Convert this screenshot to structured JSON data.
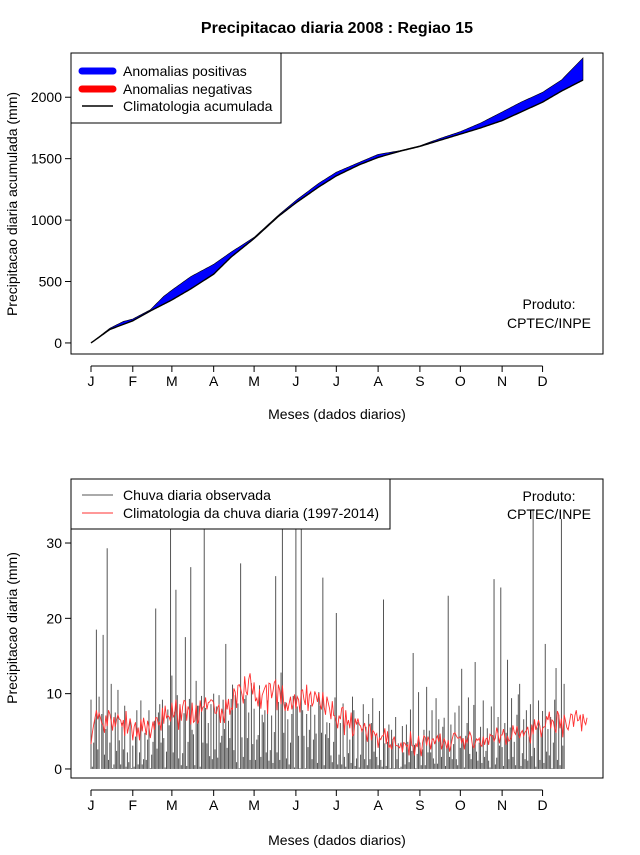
{
  "chart_data": [
    {
      "type": "area",
      "title": "Precipitacao diaria 2008 : Regiao 15",
      "xlabel": "Meses (dados diarios)",
      "ylabel": "Precipitacao diaria acumulada (mm)",
      "x_ticks": [
        "J",
        "F",
        "M",
        "A",
        "M",
        "J",
        "J",
        "A",
        "S",
        "O",
        "N",
        "D"
      ],
      "x_tick_days": [
        1,
        32,
        61,
        92,
        122,
        153,
        183,
        214,
        245,
        275,
        306,
        336
      ],
      "xlim": [
        1,
        366
      ],
      "y_ticks": [
        0,
        500,
        1000,
        1500,
        2000
      ],
      "ylim": [
        -90,
        2360
      ],
      "legend_position": "top-left",
      "legend": [
        {
          "label": "Anomalias positivas",
          "color": "#0000ff"
        },
        {
          "label": "Anomalias negativas",
          "color": "#ff0000"
        },
        {
          "label": "Climatologia acumulada",
          "color": "#000000"
        }
      ],
      "note_line1": "Produto:",
      "note_line2": "CPTEC/INPE",
      "climatology_cumulative": {
        "days": [
          1,
          15,
          32,
          45,
          61,
          75,
          92,
          105,
          122,
          140,
          153,
          170,
          183,
          200,
          214,
          230,
          245,
          260,
          275,
          290,
          306,
          320,
          336,
          350,
          366
        ],
        "values": [
          0,
          110,
          180,
          260,
          350,
          440,
          560,
          700,
          850,
          1030,
          1140,
          1270,
          1360,
          1450,
          1510,
          1560,
          1600,
          1650,
          1700,
          1750,
          1810,
          1880,
          1960,
          2050,
          2140
        ]
      },
      "observed_cumulative": {
        "days": [
          1,
          15,
          25,
          32,
          45,
          55,
          61,
          75,
          92,
          105,
          122,
          140,
          153,
          170,
          183,
          200,
          214,
          230,
          245,
          260,
          275,
          290,
          306,
          320,
          336,
          350,
          366
        ],
        "values": [
          0,
          120,
          175,
          195,
          270,
          380,
          430,
          540,
          640,
          740,
          860,
          1040,
          1160,
          1300,
          1390,
          1470,
          1535,
          1565,
          1605,
          1665,
          1720,
          1790,
          1880,
          1960,
          2040,
          2140,
          2320
        ]
      }
    },
    {
      "type": "line",
      "title": "",
      "xlabel": "Meses (dados diarios)",
      "ylabel": "Precipitacao diaria (mm)",
      "x_ticks": [
        "J",
        "F",
        "M",
        "A",
        "M",
        "J",
        "J",
        "A",
        "S",
        "O",
        "N",
        "D"
      ],
      "x_tick_days": [
        1,
        32,
        61,
        92,
        122,
        153,
        183,
        214,
        245,
        275,
        306,
        336
      ],
      "xlim": [
        1,
        366
      ],
      "y_ticks": [
        0,
        10,
        20,
        30
      ],
      "ylim": [
        -1.2,
        38.5
      ],
      "legend_position": "top-left",
      "legend": [
        {
          "label": "Chuva diaria observada",
          "color": "#555555"
        },
        {
          "label": "Climatologia da chuva diaria (1997-2014)",
          "color": "#ff3030"
        }
      ],
      "note_line1": "Produto:",
      "note_line2": "CPTEC/INPE",
      "series": [
        {
          "name": "Chuva diaria observada",
          "color": "#555555",
          "values": [
            9.2,
            0.3,
            3.5,
            6.8,
            18.5,
            2.6,
            9.6,
            0,
            7.3,
            17.8,
            1.9,
            5.3,
            29.3,
            1.2,
            3.5,
            11.3,
            0.1,
            0.6,
            7.5,
            2.4,
            10.5,
            3.8,
            0.6,
            6.1,
            2.6,
            8.4,
            0.3,
            2.2,
            0.9,
            6.5,
            0.1,
            3.1,
            0.3,
            4.3,
            7.8,
            0.6,
            2.2,
            9.1,
            0.6,
            1.3,
            4.8,
            1.2,
            3.9,
            7.8,
            0.1,
            1.9,
            3.6,
            6.4,
            21.3,
            2.7,
            7.5,
            8.6,
            3.5,
            9.2,
            4.1,
            0.2,
            2.3,
            7.9,
            5.8,
            33.0,
            12.4,
            2.2,
            7.6,
            23.8,
            9.8,
            1.4,
            8.1,
            0.5,
            2.1,
            7.4,
            17.5,
            0.4,
            3.6,
            9.3,
            26.8,
            5.2,
            4.6,
            0.5,
            11.7,
            8.4,
            8.4,
            0.3,
            9.7,
            3.5,
            33.0,
            8.1,
            3.4,
            6.1,
            1.7,
            8.6,
            1.3,
            10.0,
            2.6,
            8.3,
            1.5,
            9.8,
            3.5,
            4.4,
            9.2,
            5.3,
            16.6,
            2.8,
            6.4,
            4.1,
            9.3,
            11.2,
            2.5,
            9.8,
            0.9,
            8.7,
            0.1,
            27.3,
            4.2,
            1.6,
            9.3,
            9.8,
            4.1,
            7.5,
            1.2,
            11.4,
            3.3,
            8.0,
            1.2,
            3.9,
            4.5,
            11.1,
            1.6,
            7.2,
            6.2,
            7.8,
            2.2,
            9.1,
            1.1,
            2.5,
            7.1,
            0.8,
            4.9,
            25.6,
            2.2,
            8.9,
            1.2,
            12.8,
            33.0,
            4.8,
            8.9,
            1.4,
            6.6,
            0.6,
            3.5,
            7.3,
            9.7,
            0.2,
            33.0,
            8.3,
            4.4,
            0.1,
            33.0,
            7.8,
            4.4,
            0.1,
            7.3,
            2.9,
            5.2,
            8.5,
            1.3,
            3.9,
            7.2,
            4.7,
            0.8,
            10.2,
            8.4,
            4.8,
            25.4,
            0.5,
            4.6,
            6.2,
            4.1,
            6.1,
            1.8,
            0.9,
            3.6,
            9.5,
            20.7,
            0.6,
            1.9,
            6.1,
            0.6,
            8.7,
            1.6,
            0.3,
            6.1,
            2.1,
            3.9,
            0.8,
            9.6,
            7.8,
            0.4,
            1.4,
            6.2,
            0.2,
            1.9,
            5.3,
            8.6,
            1.3,
            5.6,
            0.5,
            7.3,
            1.3,
            6.1,
            9.4,
            2.3,
            4.5,
            1.6,
            0.5,
            7.7,
            1.2,
            0.3,
            22.5,
            3.4,
            0.4,
            3.6,
            5.9,
            0.1,
            5.2,
            4.0,
            0.1,
            6.9,
            1.3,
            3.4,
            0.1,
            0.3,
            5.7,
            2.2,
            0.6,
            5.9,
            3.6,
            0.9,
            7.9,
            2.4,
            15.4,
            3.2,
            0.1,
            2.0,
            10.2,
            3.5,
            0.5,
            2.6,
            5.2,
            0.5,
            10.9,
            2.2,
            5.1,
            2.2,
            7.8,
            1.4,
            0.7,
            9.4,
            0.7,
            6.6,
            4.3,
            1.6,
            5.6,
            6.8,
            0.4,
            2.9,
            23.0,
            1.6,
            5.9,
            1.3,
            3.3,
            7.5,
            1.3,
            0.5,
            8.4,
            2.8,
            13.3,
            3.8,
            0.2,
            4.4,
            6.1,
            9.5,
            2.0,
            1.3,
            3.1,
            8.5,
            14.2,
            2.3,
            1.1,
            3.5,
            5.6,
            0.8,
            9.1,
            1.6,
            2.4,
            5.4,
            1.1,
            0.2,
            8.3,
            4.5,
            25.2,
            0.6,
            1.5,
            6.9,
            3.1,
            24.1,
            2.9,
            0.4,
            6.1,
            4.8,
            14.5,
            1.3,
            5.5,
            9.4,
            1.6,
            3.6,
            0.5,
            7.2,
            9.9,
            11.3,
            0.4,
            2.1,
            6.6,
            1.3,
            7.8,
            1.1,
            4.3,
            8.6,
            1.7,
            34.5,
            2.8,
            0.3,
            5.5,
            9.1,
            1.2,
            4.7,
            7.7,
            0.8,
            16.6,
            2.3,
            5.3,
            1.8,
            6.9,
            0.1,
            3.5,
            9.2,
            13.4,
            1.2,
            7.2,
            0.5,
            33.2,
            3.1,
            11.3
          ]
        },
        {
          "name": "Climatologia da chuva diaria (1997-2014)",
          "color": "#ff3030",
          "values": [
            3.3,
            4.8,
            5.9,
            6.8,
            7.8,
            6.6,
            7.4,
            6.8,
            6.1,
            5.8,
            4.8,
            7.1,
            5.7,
            7.8,
            7.3,
            6.3,
            5.1,
            6.9,
            5.6,
            6.6,
            7.2,
            6.6,
            6.5,
            5.6,
            6.5,
            4.4,
            7.7,
            4.7,
            5.6,
            6.7,
            5.7,
            3.8,
            5.6,
            6.2,
            4.3,
            5.5,
            3.8,
            6.6,
            5.0,
            6.8,
            5.7,
            4.5,
            6.4,
            5.6,
            4.1,
            5.2,
            6.3,
            5.2,
            6.8,
            6.8,
            5.9,
            6.2,
            5.1,
            8.1,
            6.0,
            8.4,
            6.8,
            7.1,
            6.9,
            6.3,
            8.8,
            6.9,
            7.2,
            9.2,
            7.1,
            5.2,
            8.6,
            6.4,
            8.3,
            9.1,
            9.0,
            6.4,
            8.3,
            7.8,
            5.9,
            8.8,
            6.2,
            6.4,
            8.5,
            6.0,
            6.5,
            9.1,
            7.6,
            8.2,
            8.3,
            9.5,
            7.9,
            8.8,
            8.9,
            9.2,
            9.1,
            8.8,
            7.4,
            7.4,
            8.2,
            8.5,
            6.1,
            8.0,
            7.1,
            6.1,
            9.2,
            7.9,
            9.3,
            7.2,
            8.1,
            7.9,
            10.7,
            10.2,
            8.1,
            11.1,
            11.2,
            10.7,
            9.9,
            8.7,
            12.3,
            10.3,
            9.8,
            11.9,
            12.7,
            10.9,
            9.9,
            11.5,
            9.0,
            9.4,
            8.3,
            10.6,
            8.0,
            9.8,
            10.3,
            10.8,
            11.2,
            7.3,
            11.4,
            11.3,
            9.4,
            10.3,
            11.5,
            11.8,
            7.8,
            11.2,
            10.5,
            8.6,
            11.1,
            8.7,
            7.7,
            8.8,
            7.7,
            8.7,
            9.6,
            7.9,
            8.7,
            9.9,
            8.0,
            9.6,
            9.2,
            7.5,
            10.4,
            10.5,
            9.2,
            8.5,
            11.2,
            7.7,
            9.8,
            10.2,
            8.3,
            8.8,
            10.3,
            9.8,
            8.9,
            10.1,
            8.5,
            7.9,
            10.2,
            8.2,
            7.2,
            9.6,
            8.8,
            8.0,
            6.6,
            9.0,
            7.1,
            7.0,
            6.3,
            5.4,
            7.1,
            6.6,
            8.1,
            8.2,
            4.5,
            7.8,
            5.8,
            6.5,
            5.4,
            7.5,
            4.4,
            4.6,
            6.7,
            5.9,
            6.7,
            5.9,
            5.7,
            5.0,
            5.5,
            6.1,
            4.8,
            3.6,
            5.6,
            6.0,
            3.8,
            5.1,
            4.9,
            4.4,
            4.7,
            2.8,
            4.1,
            3.9,
            4.4,
            4.4,
            5.4,
            3.3,
            5.0,
            2.8,
            3.2,
            2.6,
            3.8,
            4.3,
            3.1,
            3.1,
            3.0,
            2.8,
            3.5,
            2.2,
            3.5,
            3.4,
            3.0,
            3.2,
            1.8,
            5.0,
            3.1,
            3.0,
            1.8,
            3.4,
            2.9,
            4.4,
            3.0,
            1.7,
            3.5,
            4.4,
            4.2,
            3.1,
            4.3,
            3.7,
            2.6,
            3.9,
            4.0,
            3.3,
            4.0,
            4.4,
            3.6,
            4.7,
            2.6,
            3.3,
            4.0,
            3.5,
            2.7,
            3.8,
            2.3,
            3.1,
            4.0,
            4.7,
            4.8,
            4.4,
            4.1,
            4.1,
            4.3,
            3.5,
            4.1,
            2.6,
            3.9,
            3.5,
            4.3,
            4.9,
            4.4,
            3.1,
            2.8,
            3.4,
            4.0,
            3.8,
            4.1,
            3.2,
            3.0,
            4.3,
            3.2,
            4.0,
            4.1,
            3.2,
            4.6,
            4.4,
            4.4,
            3.7,
            4.1,
            5.5,
            4.6,
            3.4,
            4.5,
            4.5,
            5.3,
            4.2,
            3.2,
            4.4,
            3.7,
            3.9,
            4.2,
            5.8,
            4.9,
            4.6,
            5.7,
            4.8,
            4.1,
            4.8,
            5.1,
            4.4,
            4.9,
            5.1,
            5.6,
            4.4,
            3.4,
            5.9,
            4.6,
            6.6,
            5.2,
            5.8,
            6.5,
            5.7,
            4.2,
            5.4,
            5.6,
            5.6,
            7.0,
            6.5,
            7.6,
            5.4,
            6.5,
            6.3,
            5.3,
            4.8,
            7.7,
            7.2,
            5.4,
            6.7,
            4.2,
            7.2,
            6.4,
            5.5,
            5.2,
            6.2,
            7.3,
            7.2,
            5.6,
            7.1,
            7.8,
            6.4,
            6.5,
            7.2,
            5.0,
            7.3,
            6.3,
            5.9,
            6.8
          ]
        }
      ]
    }
  ]
}
